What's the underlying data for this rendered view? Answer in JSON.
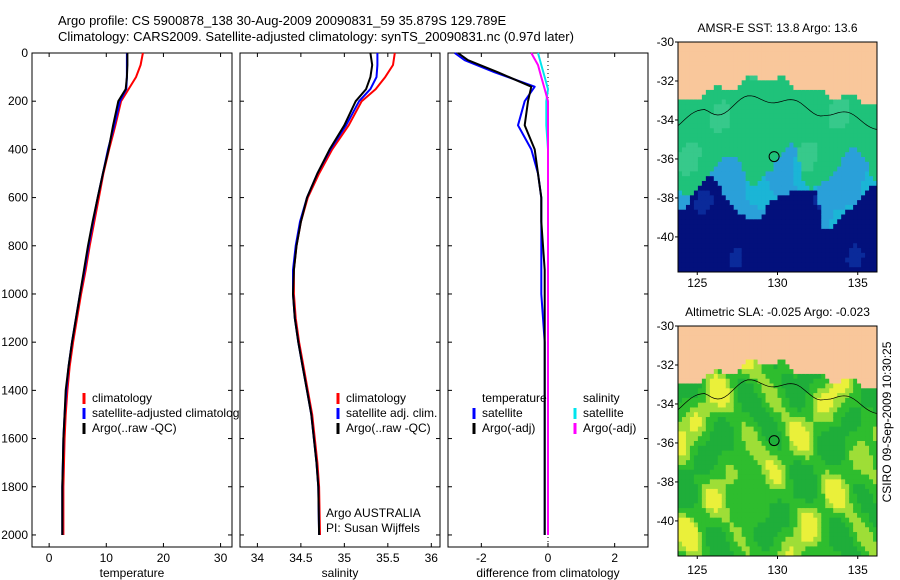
{
  "header": {
    "line1": "Argo profile: CS 5900878_138 30-Aug-2009 20090831_59 35.879S 129.789E",
    "line2": "Climatology: CARS2009. Satellite-adjusted climatology: synTS_20090831.nc (0.97d later)"
  },
  "side_label": "CSIRO 09-Sep-2009 10:30:25",
  "colors": {
    "climatology": "#ff0000",
    "satellite": "#0000ff",
    "argo": "#000000",
    "satellite_salinity": "#00e5ee",
    "argo_salinity": "#ff00ff",
    "land": "#f9c79b",
    "sst_warm": "#1fc27a",
    "sst_mid": "#1bb5d6",
    "sst_cold": "#03107c",
    "sla_low": "#2ebd2e",
    "sla_high": "#eaf03a"
  },
  "chart_data": [
    {
      "type": "line",
      "id": "temperature",
      "xlabel": "temperature",
      "xlim": [
        -3,
        32
      ],
      "xticks": [
        0,
        10,
        20,
        30
      ],
      "ylim": [
        0,
        2050
      ],
      "yticks": [
        0,
        200,
        400,
        600,
        800,
        1000,
        1200,
        1400,
        1600,
        1800,
        2000
      ],
      "y_reversed": true,
      "legend": [
        "climatology",
        "satellite-adjusted climatology",
        "Argo(..raw -QC)"
      ],
      "legend_position": "lower-right",
      "series": [
        {
          "name": "climatology",
          "role": "climatology",
          "x": [
            16.4,
            16.0,
            15.2,
            13.9,
            12.6,
            11.6,
            10.5,
            9.5,
            8.7,
            7.9,
            7.1,
            6.4,
            5.6,
            4.9,
            4.2,
            3.6,
            3.2,
            2.9,
            2.7,
            2.6,
            2.5,
            2.5
          ],
          "y": [
            0,
            50,
            100,
            150,
            200,
            300,
            400,
            500,
            600,
            700,
            800,
            900,
            1000,
            1100,
            1200,
            1300,
            1400,
            1500,
            1600,
            1700,
            1800,
            2000
          ]
        },
        {
          "name": "satellite-adjusted climatology",
          "role": "satellite",
          "x": [
            13.6,
            13.6,
            13.6,
            13.5,
            12.4,
            11.4,
            10.3,
            9.4,
            8.5,
            7.7,
            6.9,
            6.2,
            5.4,
            4.7,
            4.0,
            3.4,
            3.0,
            2.7,
            2.5,
            2.4,
            2.3,
            2.3
          ],
          "y": [
            0,
            50,
            100,
            150,
            200,
            300,
            400,
            500,
            600,
            700,
            800,
            900,
            1000,
            1100,
            1200,
            1300,
            1400,
            1500,
            1600,
            1700,
            1800,
            2000
          ]
        },
        {
          "name": "Argo(..raw -QC)",
          "role": "argo",
          "x": [
            13.7,
            13.7,
            13.6,
            13.4,
            12.1,
            11.2,
            10.4,
            9.4,
            8.5,
            7.6,
            6.8,
            6.1,
            5.4,
            4.7,
            4.0,
            3.4,
            2.9,
            2.7,
            2.5,
            2.4,
            2.3,
            2.3
          ],
          "y": [
            0,
            50,
            100,
            150,
            200,
            300,
            400,
            500,
            600,
            700,
            800,
            900,
            1000,
            1100,
            1200,
            1300,
            1400,
            1500,
            1600,
            1700,
            1800,
            2000
          ]
        }
      ]
    },
    {
      "type": "line",
      "id": "salinity",
      "xlabel": "salinity",
      "xlim": [
        33.8,
        36.1
      ],
      "xticks": [
        34,
        34.5,
        35,
        35.5,
        36
      ],
      "ylim": [
        0,
        2050
      ],
      "y_reversed": true,
      "legend": [
        "climatology",
        "satellite adj. clim.",
        "Argo(..raw -QC)"
      ],
      "legend_position": "lower-right",
      "annotation": [
        "Argo AUSTRALIA",
        "PI: Susan Wijffels"
      ],
      "series": [
        {
          "name": "climatology",
          "role": "climatology",
          "x": [
            35.58,
            35.56,
            35.47,
            35.36,
            35.2,
            35.05,
            34.86,
            34.71,
            34.58,
            34.5,
            34.45,
            34.42,
            34.42,
            34.44,
            34.48,
            34.53,
            34.58,
            34.63,
            34.66,
            34.69,
            34.71,
            34.72
          ],
          "y": [
            0,
            50,
            100,
            150,
            200,
            300,
            400,
            500,
            600,
            700,
            800,
            900,
            1000,
            1100,
            1200,
            1300,
            1400,
            1500,
            1600,
            1700,
            1800,
            2000
          ]
        },
        {
          "name": "satellite adj. clim.",
          "role": "satellite",
          "x": [
            35.38,
            35.38,
            35.37,
            35.3,
            35.17,
            35.02,
            34.84,
            34.69,
            34.57,
            34.49,
            34.44,
            34.41,
            34.41,
            34.43,
            34.47,
            34.52,
            34.57,
            34.62,
            34.65,
            34.68,
            34.7,
            34.71
          ],
          "y": [
            0,
            50,
            100,
            150,
            200,
            300,
            400,
            500,
            600,
            700,
            800,
            900,
            1000,
            1100,
            1200,
            1300,
            1400,
            1500,
            1600,
            1700,
            1800,
            2000
          ]
        },
        {
          "name": "Argo(..raw -QC)",
          "role": "argo",
          "x": [
            35.3,
            35.32,
            35.3,
            35.25,
            35.13,
            35.0,
            34.83,
            34.69,
            34.57,
            34.5,
            34.45,
            34.42,
            34.41,
            34.43,
            34.47,
            34.52,
            34.57,
            34.62,
            34.65,
            34.68,
            34.7,
            34.71
          ],
          "y": [
            0,
            50,
            100,
            150,
            200,
            300,
            400,
            500,
            600,
            700,
            800,
            900,
            1000,
            1100,
            1200,
            1300,
            1400,
            1500,
            1600,
            1700,
            1800,
            2000
          ]
        }
      ]
    },
    {
      "type": "line",
      "id": "difference",
      "xlabel": "difference from climatology",
      "xlim": [
        -3,
        3
      ],
      "xticks": [
        -2,
        0,
        2
      ],
      "ylim": [
        0,
        2050
      ],
      "y_reversed": true,
      "zero_line": true,
      "legend_temperature": [
        "temperature",
        "satellite",
        "Argo(-adj)"
      ],
      "legend_salinity": [
        "salinity",
        "satellite",
        "Argo(-adj)"
      ],
      "legend_position": "lower",
      "series": [
        {
          "name": "satellite",
          "group": "temperature",
          "role": "satellite",
          "x": [
            -2.8,
            -2.5,
            -1.6,
            -0.4,
            -0.7,
            -0.9,
            -0.5,
            -0.3,
            -0.2,
            -0.2,
            -0.2,
            -0.2,
            -0.2,
            -0.15,
            -0.1,
            -0.1,
            -0.1,
            -0.1,
            -0.1,
            -0.1,
            -0.1,
            -0.1
          ],
          "y": [
            0,
            30,
            80,
            140,
            200,
            300,
            400,
            500,
            600,
            700,
            800,
            900,
            1000,
            1100,
            1200,
            1300,
            1400,
            1500,
            1600,
            1700,
            1800,
            2000
          ]
        },
        {
          "name": "Argo(-adj)",
          "group": "temperature",
          "role": "argo",
          "x": [
            -2.7,
            -2.4,
            -1.5,
            -0.5,
            -0.6,
            -0.7,
            -0.4,
            -0.3,
            -0.2,
            -0.2,
            -0.15,
            -0.1,
            -0.1,
            -0.1,
            -0.1,
            -0.1,
            -0.1,
            -0.1,
            -0.1,
            -0.1,
            -0.1,
            -0.1
          ],
          "y": [
            0,
            30,
            80,
            140,
            200,
            300,
            400,
            500,
            600,
            700,
            800,
            900,
            1000,
            1100,
            1200,
            1300,
            1400,
            1500,
            1600,
            1700,
            1800,
            2000
          ]
        },
        {
          "name": "satellite",
          "group": "salinity",
          "role": "satellite_salinity",
          "x": [
            -0.3,
            -0.2,
            -0.1,
            0.0,
            -0.05,
            -0.05,
            0.0,
            0.0,
            0.0,
            0.0,
            0.0,
            0.0,
            0.0,
            0.0,
            0.0,
            0.0,
            0.0,
            0.0,
            0.0,
            0.0,
            0.0
          ],
          "y": [
            0,
            50,
            100,
            150,
            200,
            300,
            400,
            500,
            600,
            700,
            800,
            900,
            1000,
            1100,
            1200,
            1300,
            1400,
            1500,
            1600,
            1800,
            2000
          ]
        },
        {
          "name": "Argo(-adj)",
          "group": "salinity",
          "role": "argo_salinity",
          "x": [
            -0.5,
            -0.3,
            -0.2,
            -0.1,
            0.0,
            0.0,
            0.0,
            0.0,
            0.0,
            0.0,
            0.0,
            0.0,
            0.0,
            0.0,
            0.0,
            0.0,
            0.0,
            0.0,
            0.0,
            0.0,
            0.0
          ],
          "y": [
            0,
            50,
            100,
            150,
            200,
            300,
            400,
            500,
            600,
            700,
            800,
            900,
            1000,
            1100,
            1200,
            1300,
            1400,
            1500,
            1600,
            1800,
            2000
          ]
        }
      ]
    },
    {
      "type": "heatmap",
      "id": "sst_map",
      "title": "AMSR-E SST: 13.8  Argo: 13.6",
      "xlim": [
        123.8,
        136.2
      ],
      "ylim": [
        -41.8,
        -30
      ],
      "xticks": [
        125,
        130,
        135
      ],
      "yticks": [
        -30,
        -32,
        -34,
        -36,
        -38,
        -40
      ],
      "float_position": {
        "lon": 129.789,
        "lat": -35.879
      }
    },
    {
      "type": "heatmap",
      "id": "sla_map",
      "title": "Altimetric SLA: -0.025  Argo: -0.023",
      "xlim": [
        123.8,
        136.2
      ],
      "ylim": [
        -41.8,
        -30
      ],
      "xticks": [
        125,
        130,
        135
      ],
      "yticks": [
        -30,
        -32,
        -34,
        -36,
        -38,
        -40
      ],
      "float_position": {
        "lon": 129.789,
        "lat": -35.879
      }
    }
  ]
}
